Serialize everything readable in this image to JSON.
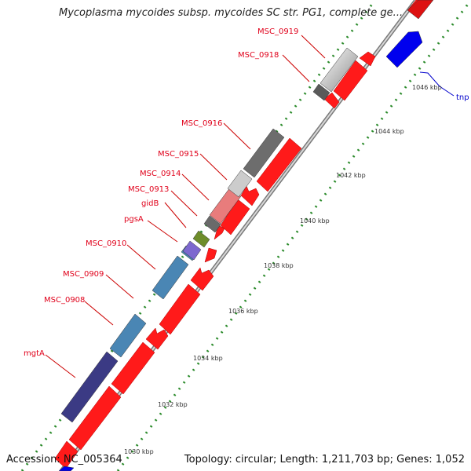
{
  "title": "Mycoplasma mycoides subsp. mycoides SC str. PG1, complete ge...",
  "footer": {
    "accession": "Accession: NC_005364",
    "topology": "Topology: circular; Length: 1,211,703 bp; Genes: 1,052"
  },
  "labels": {
    "msc0919": "MSC_0919",
    "msc0918": "MSC_0918",
    "msc0916": "MSC_0916",
    "msc0915": "MSC_0915",
    "msc0914": "MSC_0914",
    "msc0913": "MSC_0913",
    "gidB": "gidB",
    "pgsA": "pgsA",
    "msc0910": "MSC_0910",
    "msc0909": "MSC_0909",
    "msc0908": "MSC_0908",
    "mgtA": "mgtA",
    "tnp": "tnp"
  },
  "ticks": {
    "t1030": "1030 kbp",
    "t1032": "1032 kbp",
    "t1034": "1034 kbp",
    "t1036": "1036 kbp",
    "t1038": "1038 kbp",
    "t1040": "1040 kbp",
    "t1042": "1042 kbp",
    "t1044": "1044 kbp",
    "t1046": "1046 kbp"
  },
  "colors": {
    "cds": "#ff0000",
    "forward_gene": "#0000ee",
    "backbone": "#999999",
    "ruler_dots": "#228822"
  }
}
